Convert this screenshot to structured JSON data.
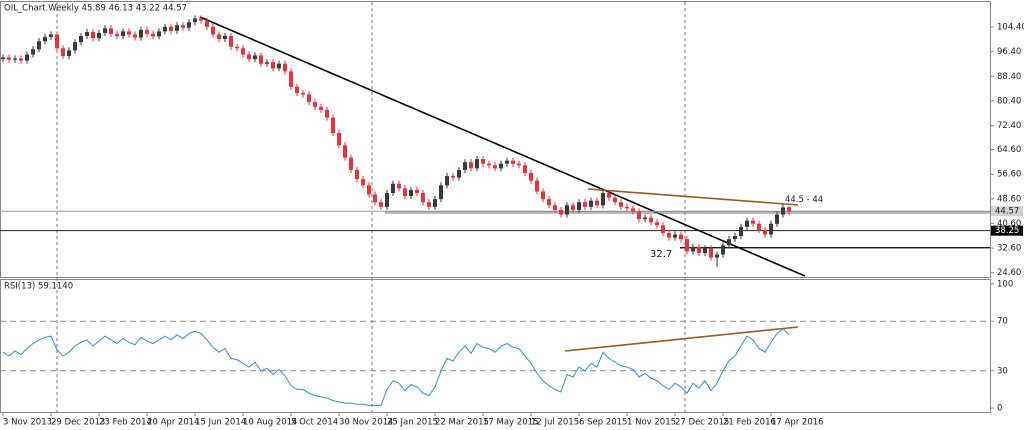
{
  "chart_data": [
    {
      "type": "candlestick",
      "title": "OIL_Chart.Weekly  45.89 46.13 43.22 44.57",
      "up_color": "#3a3a3a",
      "down_color": "#e8323c",
      "ylim": [
        23.2,
        109.3
      ],
      "yticks": [
        {
          "value": 104.4,
          "label": "104.40"
        },
        {
          "value": 96.4,
          "label": "96.40"
        },
        {
          "value": 88.4,
          "label": "88.40"
        },
        {
          "value": 80.4,
          "label": "80.40"
        },
        {
          "value": 72.4,
          "label": "72.40"
        },
        {
          "value": 64.6,
          "label": "64.60"
        },
        {
          "value": 56.6,
          "label": "56.60"
        },
        {
          "value": 48.6,
          "label": "48.60"
        },
        {
          "value": 40.6,
          "label": "40.60"
        },
        {
          "value": 32.6,
          "label": "32.60"
        },
        {
          "value": 24.6,
          "label": "24.60"
        }
      ],
      "xticks": [
        "3 Nov 2013",
        "29 Dec 2013",
        "23 Feb 2014",
        "20 Apr 2014",
        "15 Jun 2014",
        "10 Aug 2014",
        "5 Oct 2014",
        "30 Nov 2014",
        "25 Jan 2015",
        "22 Mar 2015",
        "17 May 2015",
        "12 Jul 2015",
        "6 Sep 2015",
        "1 Nov 2015",
        "27 Dec 2015",
        "21 Feb 2016",
        "17 Apr 2016"
      ],
      "price_levels": [
        {
          "value": 44.57,
          "label": "44.57"
        },
        {
          "value": 38.25,
          "label": "38.25"
        }
      ],
      "support": {
        "value": 32.7,
        "label": "32.7"
      },
      "zone": {
        "label": "44.5 - 44",
        "values": [
          44.5,
          44
        ]
      },
      "candles": [
        [
          94.0,
          95.5,
          93.0,
          94.5
        ],
        [
          94.5,
          95.5,
          92.8,
          93.8
        ],
        [
          93.8,
          95.2,
          92.8,
          94.2
        ],
        [
          94.2,
          95.2,
          92.5,
          93.5
        ],
        [
          93.5,
          96.5,
          92.5,
          95.5
        ],
        [
          95.5,
          98.2,
          94.5,
          97.2
        ],
        [
          97.2,
          100.8,
          96.2,
          99.8
        ],
        [
          99.8,
          102.2,
          98.8,
          101.2
        ],
        [
          101.2,
          103.0,
          100.2,
          102.0
        ],
        [
          102.0,
          103.0,
          96.5,
          97.5
        ],
        [
          97.5,
          98.5,
          94.0,
          95.0
        ],
        [
          95.0,
          97.8,
          94.0,
          96.8
        ],
        [
          96.8,
          100.5,
          95.8,
          99.5
        ],
        [
          99.5,
          102.5,
          98.5,
          101.5
        ],
        [
          101.5,
          103.8,
          100.5,
          102.8
        ],
        [
          102.8,
          103.8,
          99.8,
          100.8
        ],
        [
          100.8,
          103.5,
          99.8,
          102.5
        ],
        [
          102.5,
          105.0,
          101.5,
          104.0
        ],
        [
          104.0,
          105.0,
          101.2,
          102.2
        ],
        [
          102.2,
          103.2,
          100.5,
          101.5
        ],
        [
          101.5,
          104.0,
          100.5,
          103.0
        ],
        [
          103.0,
          104.0,
          101.0,
          102.0
        ],
        [
          102.0,
          103.0,
          100.0,
          101.0
        ],
        [
          101.0,
          104.5,
          100.0,
          103.5
        ],
        [
          103.5,
          104.5,
          101.2,
          102.2
        ],
        [
          102.2,
          103.2,
          100.4,
          101.4
        ],
        [
          101.4,
          104.0,
          100.4,
          103.0
        ],
        [
          103.0,
          105.5,
          102.0,
          104.5
        ],
        [
          104.5,
          105.5,
          102.2,
          103.2
        ],
        [
          103.2,
          106.0,
          102.2,
          105.0
        ],
        [
          105.0,
          106.0,
          103.2,
          104.2
        ],
        [
          104.2,
          107.0,
          103.2,
          106.0
        ],
        [
          106.0,
          108.2,
          105.0,
          107.2
        ],
        [
          107.2,
          108.2,
          105.5,
          106.5
        ],
        [
          106.5,
          107.5,
          103.5,
          104.5
        ],
        [
          104.5,
          105.5,
          101.0,
          102.0
        ],
        [
          102.0,
          103.0,
          99.5,
          100.5
        ],
        [
          100.5,
          102.5,
          99.5,
          101.5
        ],
        [
          101.5,
          102.5,
          97.0,
          98.0
        ],
        [
          98.0,
          99.0,
          96.5,
          97.5
        ],
        [
          97.5,
          98.5,
          94.5,
          95.5
        ],
        [
          95.5,
          96.5,
          93.0,
          94.0
        ],
        [
          94.0,
          96.2,
          93.0,
          95.2
        ],
        [
          95.2,
          96.2,
          91.5,
          92.5
        ],
        [
          92.5,
          94.0,
          91.5,
          93.0
        ],
        [
          93.0,
          94.0,
          90.0,
          91.0
        ],
        [
          91.0,
          93.5,
          90.0,
          92.5
        ],
        [
          92.5,
          93.5,
          89.0,
          90.0
        ],
        [
          90.0,
          91.0,
          84.0,
          85.0
        ],
        [
          85.0,
          86.0,
          82.0,
          83.0
        ],
        [
          83.0,
          84.0,
          81.5,
          82.5
        ],
        [
          82.5,
          83.5,
          79.0,
          80.0
        ],
        [
          80.0,
          81.0,
          77.5,
          78.5
        ],
        [
          78.5,
          79.5,
          76.5,
          77.5
        ],
        [
          77.5,
          78.5,
          74.0,
          75.0
        ],
        [
          75.0,
          76.0,
          69.0,
          70.0
        ],
        [
          70.0,
          71.0,
          65.0,
          66.0
        ],
        [
          66.0,
          67.0,
          61.0,
          62.0
        ],
        [
          62.0,
          63.0,
          57.0,
          58.0
        ],
        [
          58.0,
          59.0,
          54.0,
          55.0
        ],
        [
          55.0,
          56.0,
          52.0,
          53.0
        ],
        [
          53.0,
          54.0,
          49.0,
          50.0
        ],
        [
          50.0,
          51.0,
          46.5,
          47.5
        ],
        [
          47.5,
          48.5,
          45.0,
          46.0
        ],
        [
          46.0,
          51.5,
          45.0,
          50.5
        ],
        [
          50.5,
          54.5,
          49.5,
          53.5
        ],
        [
          53.5,
          54.5,
          51.0,
          52.0
        ],
        [
          52.0,
          53.0,
          48.5,
          49.5
        ],
        [
          49.5,
          52.5,
          48.5,
          51.5
        ],
        [
          51.5,
          52.5,
          49.5,
          50.5
        ],
        [
          50.5,
          51.5,
          46.5,
          47.5
        ],
        [
          47.5,
          48.5,
          45.0,
          46.0
        ],
        [
          46.0,
          49.5,
          45.0,
          48.5
        ],
        [
          48.5,
          54.0,
          47.5,
          53.0
        ],
        [
          53.0,
          57.0,
          52.0,
          56.0
        ],
        [
          56.0,
          57.0,
          54.5,
          55.5
        ],
        [
          55.5,
          59.0,
          54.5,
          58.0
        ],
        [
          58.0,
          61.5,
          57.0,
          60.5
        ],
        [
          60.5,
          61.5,
          57.5,
          58.5
        ],
        [
          58.5,
          62.5,
          57.5,
          61.5
        ],
        [
          61.5,
          62.5,
          59.0,
          60.0
        ],
        [
          60.0,
          61.0,
          58.5,
          59.5
        ],
        [
          59.5,
          60.5,
          57.5,
          58.5
        ],
        [
          58.5,
          61.0,
          57.5,
          60.0
        ],
        [
          60.0,
          62.0,
          59.0,
          61.0
        ],
        [
          61.0,
          62.0,
          59.0,
          60.0
        ],
        [
          60.0,
          61.0,
          58.5,
          59.5
        ],
        [
          59.5,
          60.5,
          56.0,
          57.0
        ],
        [
          57.0,
          58.0,
          53.5,
          54.5
        ],
        [
          54.5,
          55.5,
          50.0,
          51.0
        ],
        [
          51.0,
          52.0,
          47.5,
          48.5
        ],
        [
          48.5,
          49.5,
          45.5,
          46.5
        ],
        [
          46.5,
          47.5,
          44.0,
          45.0
        ],
        [
          45.0,
          46.0,
          42.5,
          43.5
        ],
        [
          43.5,
          47.5,
          42.5,
          46.5
        ],
        [
          46.5,
          47.5,
          44.0,
          45.0
        ],
        [
          45.0,
          48.5,
          44.0,
          47.5
        ],
        [
          47.5,
          48.5,
          45.0,
          46.0
        ],
        [
          46.0,
          49.0,
          45.0,
          48.0
        ],
        [
          48.0,
          49.0,
          45.5,
          46.5
        ],
        [
          46.5,
          51.5,
          45.5,
          50.5
        ],
        [
          50.5,
          51.5,
          48.0,
          49.0
        ],
        [
          49.0,
          50.0,
          46.5,
          47.5
        ],
        [
          47.5,
          48.5,
          45.0,
          46.0
        ],
        [
          46.0,
          47.0,
          44.5,
          45.5
        ],
        [
          45.5,
          46.5,
          43.5,
          44.5
        ],
        [
          44.5,
          45.5,
          41.0,
          42.0
        ],
        [
          42.0,
          43.5,
          41.0,
          42.5
        ],
        [
          42.5,
          43.5,
          40.0,
          41.0
        ],
        [
          41.0,
          42.0,
          39.0,
          40.0
        ],
        [
          40.0,
          41.0,
          36.5,
          37.5
        ],
        [
          37.5,
          38.5,
          35.0,
          36.0
        ],
        [
          36.0,
          38.0,
          35.0,
          37.0
        ],
        [
          37.0,
          38.0,
          34.5,
          35.5
        ],
        [
          35.5,
          36.5,
          30.5,
          31.5
        ],
        [
          31.5,
          34.0,
          30.5,
          33.0
        ],
        [
          33.0,
          34.0,
          30.0,
          31.0
        ],
        [
          31.0,
          33.5,
          30.0,
          32.5
        ],
        [
          32.5,
          33.5,
          28.5,
          29.5
        ],
        [
          29.5,
          31.5,
          26.5,
          30.5
        ],
        [
          30.5,
          34.5,
          29.5,
          33.5
        ],
        [
          33.5,
          36.5,
          32.5,
          35.5
        ],
        [
          35.5,
          37.5,
          34.5,
          36.5
        ],
        [
          36.5,
          40.5,
          35.5,
          39.5
        ],
        [
          39.5,
          42.5,
          38.5,
          41.5
        ],
        [
          41.5,
          42.5,
          39.5,
          40.5
        ],
        [
          40.5,
          41.5,
          37.5,
          38.5
        ],
        [
          38.5,
          39.5,
          36.0,
          37.0
        ],
        [
          37.0,
          41.5,
          36.0,
          40.5
        ],
        [
          40.5,
          44.5,
          39.5,
          43.5
        ],
        [
          43.5,
          46.8,
          42.5,
          45.8
        ],
        [
          45.89,
          46.13,
          43.22,
          44.57
        ]
      ]
    },
    {
      "type": "line",
      "title": "RSI(13) 59.1140",
      "color": "#2e8fe6",
      "ylim": [
        -3.2,
        103.2
      ],
      "yticks": [
        100,
        70,
        30,
        0
      ],
      "levels": [
        70,
        30
      ],
      "values": [
        45,
        42,
        46,
        43,
        48,
        52,
        55,
        57,
        58,
        47,
        42,
        45,
        50,
        53,
        55,
        50,
        54,
        58,
        55,
        52,
        56,
        53,
        51,
        57,
        54,
        52,
        55,
        58,
        55,
        59,
        56,
        60,
        62,
        60,
        55,
        49,
        45,
        48,
        40,
        39,
        36,
        33,
        37,
        30,
        32,
        27,
        31,
        26,
        18,
        15,
        15,
        12,
        10,
        9,
        8,
        6,
        5,
        4,
        4,
        3,
        3,
        2,
        2,
        2,
        15,
        22,
        20,
        14,
        19,
        17,
        12,
        10,
        17,
        30,
        40,
        38,
        45,
        50,
        44,
        52,
        49,
        48,
        45,
        50,
        52,
        49,
        48,
        42,
        36,
        28,
        22,
        18,
        15,
        13,
        27,
        25,
        33,
        30,
        36,
        33,
        45,
        40,
        37,
        34,
        33,
        31,
        25,
        28,
        24,
        22,
        18,
        15,
        20,
        17,
        12,
        20,
        16,
        22,
        14,
        20,
        30,
        38,
        42,
        50,
        58,
        55,
        48,
        45,
        53,
        60,
        64,
        59.114
      ]
    }
  ]
}
